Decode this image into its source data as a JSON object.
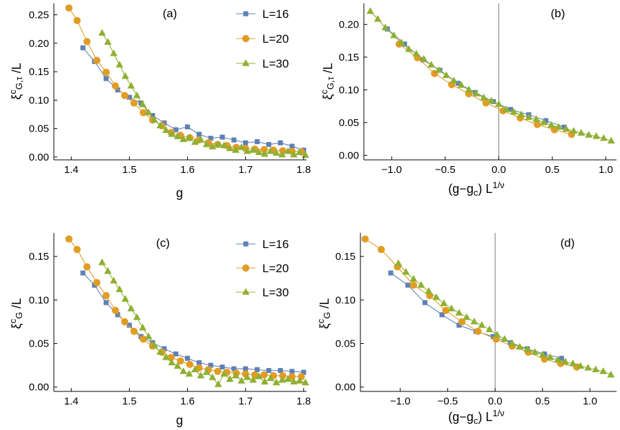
{
  "colors": {
    "L16": "#5e81b5",
    "L20": "#e19c24",
    "L30": "#8fb032"
  },
  "legend": [
    {
      "name": "L=16",
      "marker": "square",
      "color_key": "L16"
    },
    {
      "name": "L=20",
      "marker": "circle",
      "color_key": "L20"
    },
    {
      "name": "L=30",
      "marker": "triangle",
      "color_key": "L30"
    }
  ],
  "chart_data": [
    {
      "id": "a",
      "type": "scatter",
      "panel_label": "(a)",
      "xlabel": "g",
      "ylabel": "ξ^c_{G,τ}/L",
      "xlim": [
        1.37,
        1.805
      ],
      "ylim": [
        -0.005,
        0.27
      ],
      "xticks": [
        1.4,
        1.5,
        1.6,
        1.7,
        1.8
      ],
      "xtick_labels": [
        "1.4",
        "1.5",
        "1.6",
        "1.7",
        "1.8"
      ],
      "yticks": [
        0.0,
        0.05,
        0.1,
        0.15,
        0.2,
        0.25
      ],
      "ytick_labels": [
        "0.00",
        "0.05",
        "0.10",
        "0.15",
        "0.20",
        "0.25"
      ],
      "show_legend": true,
      "series": [
        {
          "name": "L=16",
          "marker": "square",
          "color_key": "L16",
          "x": [
            1.42,
            1.44,
            1.46,
            1.48,
            1.5,
            1.52,
            1.54,
            1.56,
            1.58,
            1.6,
            1.62,
            1.64,
            1.66,
            1.68,
            1.7,
            1.72,
            1.74,
            1.76,
            1.78,
            1.8
          ],
          "y": [
            0.192,
            0.168,
            0.138,
            0.118,
            0.105,
            0.095,
            0.073,
            0.06,
            0.048,
            0.053,
            0.04,
            0.033,
            0.035,
            0.03,
            0.025,
            0.027,
            0.022,
            0.025,
            0.019,
            0.012
          ]
        },
        {
          "name": "L=20",
          "marker": "circle",
          "color_key": "L20",
          "x": [
            1.396,
            1.41,
            1.427,
            1.444,
            1.46,
            1.476,
            1.492,
            1.508,
            1.524,
            1.54,
            1.556,
            1.572,
            1.588,
            1.604,
            1.62,
            1.636,
            1.652,
            1.668,
            1.684,
            1.7,
            1.716,
            1.732,
            1.748,
            1.764,
            1.78,
            1.796
          ],
          "y": [
            0.262,
            0.24,
            0.203,
            0.17,
            0.149,
            0.125,
            0.108,
            0.095,
            0.078,
            0.065,
            0.055,
            0.043,
            0.038,
            0.034,
            0.03,
            0.025,
            0.022,
            0.02,
            0.017,
            0.015,
            0.014,
            0.013,
            0.012,
            0.011,
            0.01,
            0.009
          ]
        },
        {
          "name": "L=30",
          "marker": "triangle",
          "color_key": "L30",
          "x": [
            1.453,
            1.463,
            1.473,
            1.483,
            1.493,
            1.503,
            1.513,
            1.523,
            1.533,
            1.543,
            1.553,
            1.563,
            1.573,
            1.583,
            1.593,
            1.603,
            1.613,
            1.623,
            1.633,
            1.643,
            1.653,
            1.663,
            1.673,
            1.683,
            1.693,
            1.703,
            1.713,
            1.723,
            1.733,
            1.743,
            1.753,
            1.763,
            1.773,
            1.783,
            1.793,
            1.803
          ],
          "y": [
            0.218,
            0.202,
            0.182,
            0.162,
            0.142,
            0.125,
            0.108,
            0.092,
            0.078,
            0.065,
            0.055,
            0.047,
            0.04,
            0.036,
            0.031,
            0.033,
            0.026,
            0.03,
            0.022,
            0.018,
            0.022,
            0.02,
            0.015,
            0.012,
            0.017,
            0.01,
            0.012,
            0.008,
            0.005,
            0.01,
            0.007,
            0.004,
            0.01,
            0.004,
            0.008,
            0.003
          ]
        }
      ]
    },
    {
      "id": "b",
      "type": "scatter",
      "panel_label": "(b)",
      "xlabel": "(g−g_c) L^{1/ν}",
      "ylabel": "ξ^c_{G,τ}/L",
      "xlim": [
        -1.26,
        1.1
      ],
      "ylim": [
        -0.007,
        0.232
      ],
      "xticks": [
        -1.0,
        -0.5,
        0.0,
        0.5,
        1.0
      ],
      "xtick_labels": [
        "−1.0",
        "−0.5",
        "0.0",
        "0.5",
        "1.0"
      ],
      "yticks": [
        0.0,
        0.05,
        0.1,
        0.15,
        0.2
      ],
      "ytick_labels": [
        "0.00",
        "0.05",
        "0.10",
        "0.15",
        "0.20"
      ],
      "show_legend": false,
      "vline_x": 0.0,
      "series": [
        {
          "name": "L=16",
          "marker": "square",
          "color_key": "L16",
          "x": [
            -1.04,
            -0.88,
            -0.71,
            -0.55,
            -0.38,
            -0.22,
            -0.05,
            0.11,
            0.28,
            0.44,
            0.61
          ],
          "y": [
            0.193,
            0.17,
            0.146,
            0.13,
            0.11,
            0.096,
            0.082,
            0.07,
            0.062,
            0.053,
            0.043
          ]
        },
        {
          "name": "L=20",
          "marker": "circle",
          "color_key": "L20",
          "x": [
            -0.93,
            -0.76,
            -0.6,
            -0.44,
            -0.28,
            -0.12,
            0.04,
            0.2,
            0.36,
            0.52,
            0.68
          ],
          "y": [
            0.17,
            0.149,
            0.125,
            0.108,
            0.094,
            0.08,
            0.068,
            0.057,
            0.047,
            0.039,
            0.032
          ]
        },
        {
          "name": "L=30",
          "marker": "triangle",
          "color_key": "L30",
          "x": [
            -1.2,
            -1.13,
            -1.06,
            -0.98,
            -0.91,
            -0.84,
            -0.77,
            -0.7,
            -0.63,
            -0.56,
            -0.49,
            -0.42,
            -0.35,
            -0.28,
            -0.21,
            -0.14,
            -0.07,
            0.0,
            0.07,
            0.14,
            0.21,
            0.28,
            0.35,
            0.42,
            0.49,
            0.56,
            0.63,
            0.7,
            0.77,
            0.84,
            0.91,
            0.98,
            1.05
          ],
          "y": [
            0.22,
            0.208,
            0.195,
            0.183,
            0.172,
            0.162,
            0.155,
            0.147,
            0.138,
            0.13,
            0.122,
            0.114,
            0.107,
            0.1,
            0.094,
            0.088,
            0.083,
            0.078,
            0.07,
            0.066,
            0.062,
            0.058,
            0.055,
            0.05,
            0.046,
            0.043,
            0.04,
            0.037,
            0.034,
            0.031,
            0.029,
            0.026,
            0.022
          ]
        }
      ]
    },
    {
      "id": "c",
      "type": "scatter",
      "panel_label": "(c)",
      "xlabel": "g",
      "ylabel": "ξ^c_G/L",
      "xlim": [
        1.37,
        1.805
      ],
      "ylim": [
        -0.005,
        0.177
      ],
      "xticks": [
        1.4,
        1.5,
        1.6,
        1.7,
        1.8
      ],
      "xtick_labels": [
        "1.4",
        "1.5",
        "1.6",
        "1.7",
        "1.8"
      ],
      "yticks": [
        0.0,
        0.05,
        0.1,
        0.15
      ],
      "ytick_labels": [
        "0.00",
        "0.05",
        "0.10",
        "0.15"
      ],
      "show_legend": true,
      "series": [
        {
          "name": "L=16",
          "marker": "square",
          "color_key": "L16",
          "x": [
            1.42,
            1.44,
            1.46,
            1.48,
            1.5,
            1.52,
            1.54,
            1.56,
            1.58,
            1.6,
            1.62,
            1.64,
            1.66,
            1.68,
            1.7,
            1.72,
            1.74,
            1.76,
            1.78,
            1.8
          ],
          "y": [
            0.131,
            0.117,
            0.097,
            0.083,
            0.071,
            0.058,
            0.051,
            0.044,
            0.038,
            0.033,
            0.028,
            0.025,
            0.023,
            0.021,
            0.021,
            0.02,
            0.019,
            0.019,
            0.018,
            0.017
          ]
        },
        {
          "name": "L=20",
          "marker": "circle",
          "color_key": "L20",
          "x": [
            1.396,
            1.41,
            1.427,
            1.444,
            1.46,
            1.476,
            1.492,
            1.508,
            1.524,
            1.54,
            1.556,
            1.572,
            1.588,
            1.604,
            1.62,
            1.636,
            1.652,
            1.668,
            1.684,
            1.7,
            1.716,
            1.732,
            1.748,
            1.764,
            1.78,
            1.796
          ],
          "y": [
            0.17,
            0.158,
            0.138,
            0.12,
            0.105,
            0.088,
            0.075,
            0.064,
            0.055,
            0.047,
            0.04,
            0.034,
            0.03,
            0.026,
            0.022,
            0.02,
            0.018,
            0.017,
            0.016,
            0.015,
            0.014,
            0.014,
            0.013,
            0.013,
            0.012,
            0.012
          ]
        },
        {
          "name": "L=30",
          "marker": "triangle",
          "color_key": "L30",
          "x": [
            1.453,
            1.463,
            1.473,
            1.483,
            1.493,
            1.503,
            1.513,
            1.523,
            1.533,
            1.543,
            1.553,
            1.563,
            1.573,
            1.583,
            1.593,
            1.603,
            1.613,
            1.623,
            1.633,
            1.643,
            1.653,
            1.663,
            1.673,
            1.683,
            1.693,
            1.703,
            1.713,
            1.723,
            1.733,
            1.743,
            1.753,
            1.763,
            1.773,
            1.783,
            1.793,
            1.803
          ],
          "y": [
            0.143,
            0.133,
            0.122,
            0.112,
            0.101,
            0.09,
            0.08,
            0.068,
            0.058,
            0.048,
            0.04,
            0.034,
            0.028,
            0.024,
            0.018,
            0.015,
            0.02,
            0.013,
            0.017,
            0.011,
            0.003,
            0.015,
            0.009,
            0.013,
            0.007,
            0.011,
            0.008,
            0.012,
            0.006,
            0.01,
            0.005,
            0.008,
            0.009,
            0.006,
            0.007,
            0.005
          ]
        }
      ]
    },
    {
      "id": "d",
      "type": "scatter",
      "panel_label": "(d)",
      "xlabel": "(g−g_c) L^{1/ν}",
      "ylabel": "ξ^c_G/L",
      "xlim": [
        -1.42,
        1.28
      ],
      "ylim": [
        -0.005,
        0.177
      ],
      "xticks": [
        -1.0,
        -0.5,
        0.0,
        0.5,
        1.0
      ],
      "xtick_labels": [
        "−1.0",
        "−0.5",
        "0.0",
        "0.5",
        "1.0"
      ],
      "yticks": [
        0.0,
        0.05,
        0.1,
        0.15
      ],
      "ytick_labels": [
        "0.00",
        "0.05",
        "0.10",
        "0.15"
      ],
      "show_legend": false,
      "vline_x": 0.0,
      "series": [
        {
          "name": "L=16",
          "marker": "square",
          "color_key": "L16",
          "x": [
            -1.1,
            -0.92,
            -0.74,
            -0.56,
            -0.38,
            -0.2,
            -0.02,
            0.16,
            0.34,
            0.52,
            0.7
          ],
          "y": [
            0.131,
            0.117,
            0.097,
            0.083,
            0.071,
            0.064,
            0.058,
            0.051,
            0.044,
            0.038,
            0.033
          ]
        },
        {
          "name": "L=20",
          "marker": "circle",
          "color_key": "L20",
          "x": [
            -1.37,
            -1.2,
            -1.03,
            -0.86,
            -0.69,
            -0.52,
            -0.35,
            -0.18,
            0.01,
            0.18,
            0.35,
            0.52,
            0.69,
            0.86
          ],
          "y": [
            0.17,
            0.158,
            0.138,
            0.117,
            0.105,
            0.088,
            0.075,
            0.064,
            0.055,
            0.047,
            0.04,
            0.032,
            0.027,
            0.023
          ]
        },
        {
          "name": "L=30",
          "marker": "triangle",
          "color_key": "L30",
          "x": [
            -1.02,
            -0.94,
            -0.86,
            -0.78,
            -0.7,
            -0.62,
            -0.54,
            -0.46,
            -0.38,
            -0.3,
            -0.22,
            -0.14,
            -0.06,
            0.02,
            0.1,
            0.18,
            0.26,
            0.34,
            0.42,
            0.5,
            0.58,
            0.66,
            0.74,
            0.82,
            0.9,
            0.98,
            1.06,
            1.14,
            1.22
          ],
          "y": [
            0.142,
            0.132,
            0.124,
            0.117,
            0.11,
            0.103,
            0.096,
            0.09,
            0.085,
            0.08,
            0.075,
            0.071,
            0.066,
            0.06,
            0.055,
            0.05,
            0.046,
            0.043,
            0.04,
            0.037,
            0.034,
            0.031,
            0.029,
            0.027,
            0.024,
            0.022,
            0.02,
            0.018,
            0.014
          ]
        }
      ]
    }
  ]
}
